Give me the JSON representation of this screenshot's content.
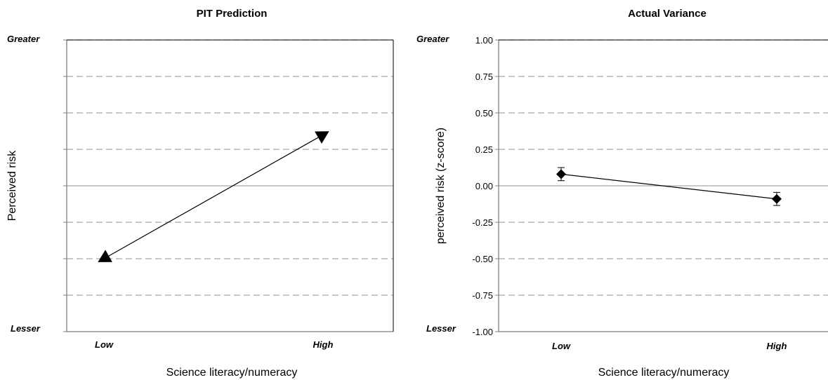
{
  "chart_data": [
    {
      "type": "line",
      "title": "PIT Prediction",
      "xlabel": "Science literacy/numeracy",
      "ylabel": "Perceived risk",
      "categories": [
        "Low",
        "High"
      ],
      "y_top_label": "Greater",
      "y_bottom_label": "Lesser",
      "ylim": [
        -1,
        1
      ],
      "ytick_step": 0.25,
      "show_tick_labels": false,
      "grid": true,
      "marker": "triangle",
      "series": [
        {
          "values": [
            -0.5,
            0.35
          ],
          "directions": [
            "left",
            "right"
          ]
        }
      ]
    },
    {
      "type": "line",
      "title": "Actual Variance",
      "xlabel": "Science literacy/numeracy",
      "ylabel": "perceived risk (z-score)",
      "categories": [
        "Low",
        "High"
      ],
      "y_top_label": "Greater",
      "y_bottom_label": "Lesser",
      "ylim": [
        -1,
        1
      ],
      "ytick_step": 0.25,
      "ytick_labels": [
        "-1.00",
        "-0.75",
        "-0.50",
        "-0.25",
        "0.00",
        "0.25",
        "0.50",
        "0.75",
        "1.00"
      ],
      "show_tick_labels": true,
      "grid": true,
      "marker": "diamond",
      "series": [
        {
          "values": [
            0.08,
            -0.09
          ],
          "error": [
            0.045,
            0.045
          ]
        }
      ]
    }
  ],
  "colors": {
    "grid": "#a6a6a6",
    "axis": "#808080",
    "series": "#000000"
  }
}
